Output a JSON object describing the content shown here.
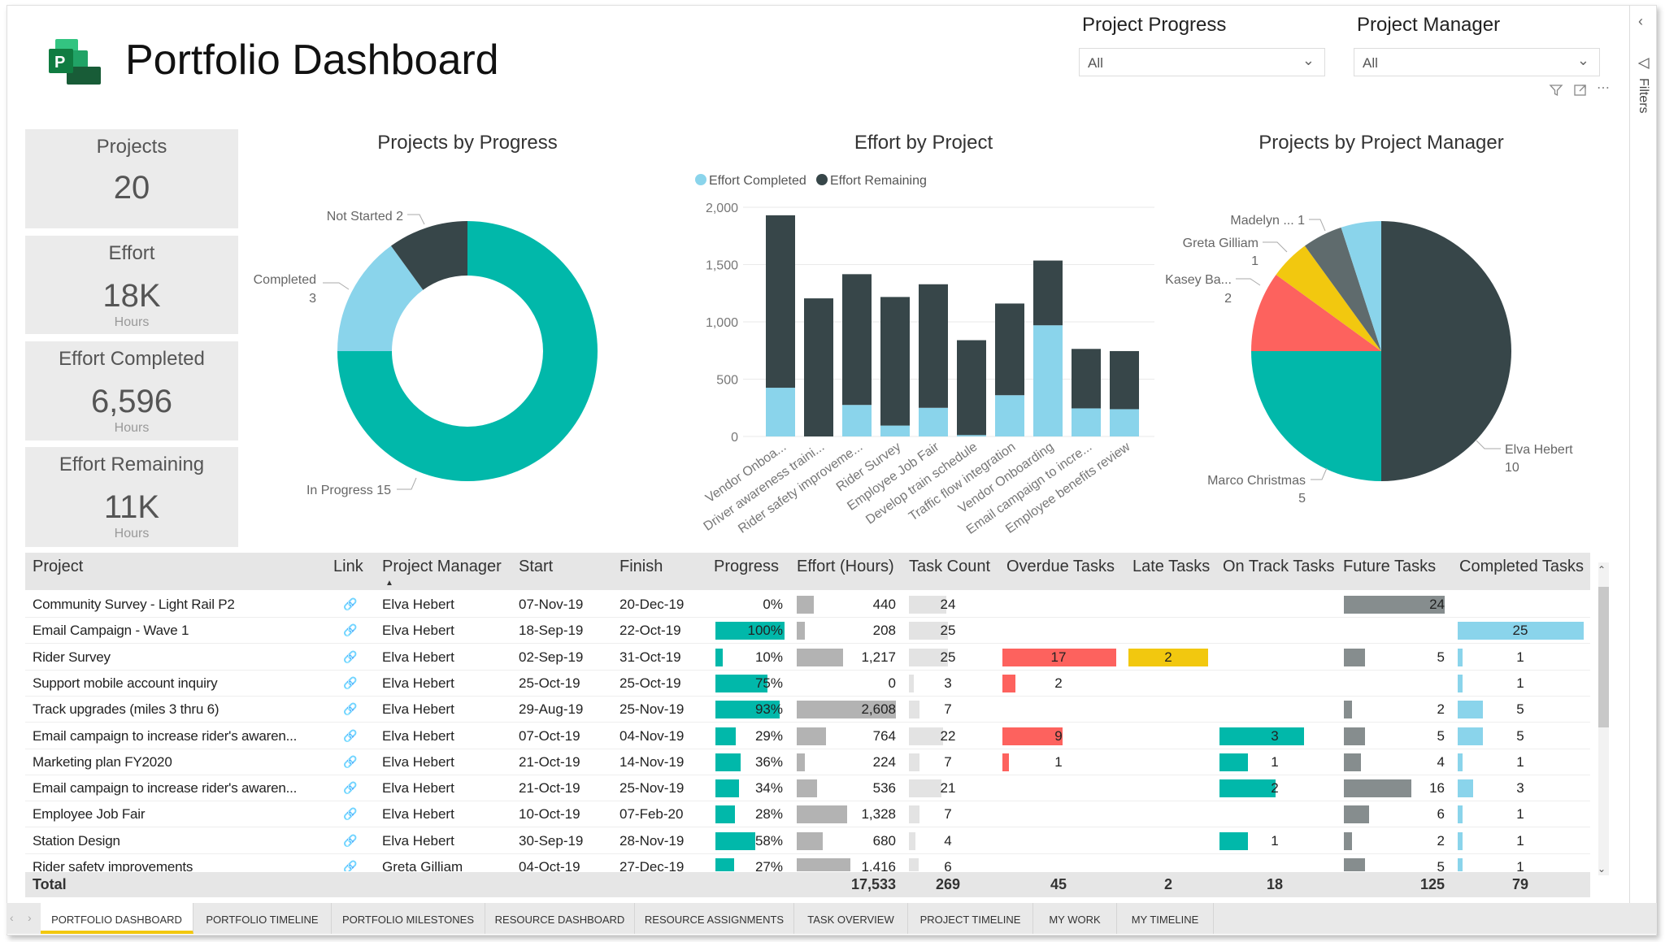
{
  "header": {
    "title": "Portfolio Dashboard",
    "logo_letter": "P"
  },
  "slicers": [
    {
      "label": "Project Progress",
      "value": "All"
    },
    {
      "label": "Project Manager",
      "value": "All"
    }
  ],
  "visual_icons": [
    "filter-icon",
    "focus-mode-icon",
    "more-options-icon"
  ],
  "filters_pane": {
    "label": "Filters",
    "collapse_icon": "chevron-left-icon"
  },
  "kpis": [
    {
      "title": "Projects",
      "value": "20",
      "unit": ""
    },
    {
      "title": "Effort",
      "value": "18K",
      "unit": "Hours"
    },
    {
      "title": "Effort Completed",
      "value": "6,596",
      "unit": "Hours"
    },
    {
      "title": "Effort Remaining",
      "value": "11K",
      "unit": "Hours"
    }
  ],
  "colors": {
    "teal": "#01B8AA",
    "dark": "#374649",
    "lightblue": "#8AD4EB",
    "red": "#FD625E",
    "yellow": "#F2C80F",
    "gray": "#5F6B6D",
    "barGray": "#b3b3b3",
    "taskGray": "#e3e3e3",
    "futureGray": "#868d8e"
  },
  "chart_data": [
    {
      "type": "pie",
      "donut": true,
      "title": "Projects by Progress",
      "slices": [
        {
          "name": "In Progress",
          "value": 15,
          "color": "#01B8AA"
        },
        {
          "name": "Completed",
          "value": 3,
          "color": "#8AD4EB"
        },
        {
          "name": "Not Started",
          "value": 2,
          "color": "#374649"
        }
      ]
    },
    {
      "type": "bar",
      "stacked": true,
      "title": "Effort by Project",
      "legend": "top-left",
      "ylim": [
        0,
        2000
      ],
      "yticks": [
        "0",
        "500",
        "1,000",
        "1,500",
        "2,000"
      ],
      "grid": true,
      "categories": [
        "Vendor Onboa...",
        "Driver awareness traini...",
        "Rider safety improveme...",
        "Rider Survey",
        "Employee Job Fair",
        "Develop train schedule",
        "Traffic flow integration",
        "Vendor Onboarding",
        "Email campaign to incre...",
        "Employee benefits review"
      ],
      "series": [
        {
          "name": "Effort Completed",
          "color": "#8AD4EB",
          "values": [
            425,
            0,
            275,
            95,
            250,
            12,
            360,
            970,
            245,
            238
          ]
        },
        {
          "name": "Effort Remaining",
          "color": "#374649",
          "values": [
            1505,
            1205,
            1141,
            1122,
            1078,
            828,
            800,
            565,
            519,
            507
          ]
        }
      ]
    },
    {
      "type": "pie",
      "title": "Projects by Project Manager",
      "slices": [
        {
          "name": "Elva Hebert",
          "label": "Elva Hebert",
          "value_label": "10",
          "value": 10,
          "color": "#374649"
        },
        {
          "name": "Marco Christmas",
          "label": "Marco Christmas",
          "value_label": "5",
          "value": 5,
          "color": "#01B8AA"
        },
        {
          "name": "Kasey Ba...",
          "label": "Kasey Ba...",
          "value_label": "2",
          "value": 2,
          "color": "#FD625E"
        },
        {
          "name": "Greta Gilliam",
          "label": "Greta Gilliam",
          "value_label": "1",
          "value": 1,
          "color": "#F2C80F"
        },
        {
          "name": "Madelyn ...",
          "label": "Madelyn ... 1",
          "value_label": "",
          "value": 1,
          "color": "#5F6B6D"
        },
        {
          "value": 1,
          "color": "#8AD4EB"
        }
      ]
    }
  ],
  "table": {
    "columns": [
      "Project",
      "Link",
      "Project Manager",
      "Start",
      "Finish",
      "Progress",
      "Effort (Hours)",
      "Task Count",
      "Overdue Tasks",
      "Late Tasks",
      "On Track Tasks",
      "Future Tasks",
      "Completed Tasks"
    ],
    "sort_column": "Project Manager",
    "rows": [
      [
        "Community Survey - Light Rail P2",
        "Elva Hebert",
        "07-Nov-19",
        "20-Dec-19",
        0,
        440,
        24,
        null,
        null,
        null,
        24,
        null
      ],
      [
        "Email Campaign - Wave 1",
        "Elva Hebert",
        "18-Sep-19",
        "22-Oct-19",
        100,
        208,
        25,
        null,
        null,
        null,
        null,
        25
      ],
      [
        "Rider Survey",
        "Elva Hebert",
        "02-Sep-19",
        "31-Oct-19",
        10,
        1217,
        25,
        17,
        2,
        null,
        5,
        1
      ],
      [
        "Support mobile account inquiry",
        "Elva Hebert",
        "25-Oct-19",
        "25-Oct-19",
        75,
        0,
        3,
        2,
        null,
        null,
        null,
        1
      ],
      [
        "Track upgrades (miles 3 thru 6)",
        "Elva Hebert",
        "29-Aug-19",
        "25-Nov-19",
        93,
        2608,
        7,
        null,
        null,
        null,
        2,
        5
      ],
      [
        "Email campaign to increase rider's awaren...",
        "Elva Hebert",
        "07-Oct-19",
        "04-Nov-19",
        29,
        764,
        22,
        9,
        null,
        3,
        5,
        5
      ],
      [
        "Marketing plan FY2020",
        "Elva Hebert",
        "21-Oct-19",
        "14-Nov-19",
        36,
        224,
        7,
        1,
        null,
        1,
        4,
        1
      ],
      [
        "Email campaign to increase rider's awaren...",
        "Elva Hebert",
        "21-Oct-19",
        "25-Nov-19",
        34,
        536,
        21,
        null,
        null,
        2,
        16,
        3
      ],
      [
        "Employee Job Fair",
        "Elva Hebert",
        "10-Oct-19",
        "07-Feb-20",
        28,
        1328,
        7,
        null,
        null,
        null,
        6,
        1
      ],
      [
        "Station Design",
        "Elva Hebert",
        "30-Sep-19",
        "28-Nov-19",
        58,
        680,
        4,
        null,
        null,
        1,
        2,
        1
      ],
      [
        "Rider safety improvements",
        "Greta Gilliam",
        "04-Oct-19",
        "27-Dec-19",
        27,
        1416,
        6,
        null,
        null,
        null,
        5,
        1
      ]
    ],
    "total": {
      "label": "Total",
      "effort": "17,533",
      "task_count": "269",
      "overdue": "45",
      "late": "2",
      "on_track": "18",
      "future": "125",
      "completed": "79"
    }
  },
  "tabs": [
    {
      "label": "PORTFOLIO DASHBOARD",
      "active": true
    },
    {
      "label": "PORTFOLIO TIMELINE"
    },
    {
      "label": "PORTFOLIO MILESTONES"
    },
    {
      "label": "RESOURCE DASHBOARD"
    },
    {
      "label": "RESOURCE ASSIGNMENTS"
    },
    {
      "label": "TASK OVERVIEW"
    },
    {
      "label": "PROJECT TIMELINE"
    },
    {
      "label": "MY WORK"
    },
    {
      "label": "MY TIMELINE"
    }
  ]
}
